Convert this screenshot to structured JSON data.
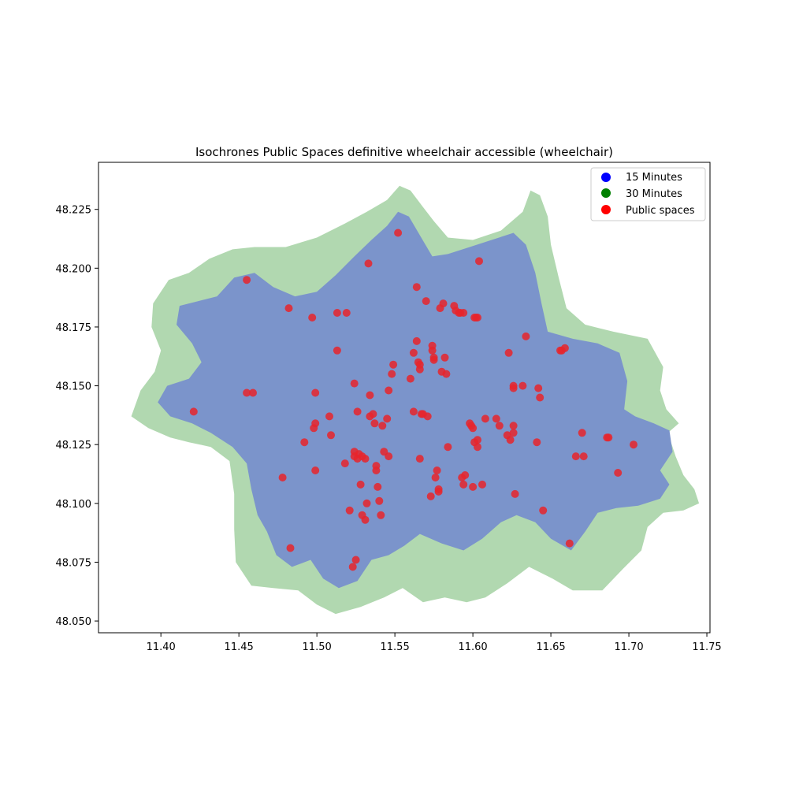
{
  "chart_data": {
    "type": "scatter",
    "title": "Isochrones Public Spaces definitive wheelchair accessible (wheelchair)",
    "xlabel": "",
    "ylabel": "",
    "xlim": [
      11.36,
      11.752
    ],
    "ylim": [
      48.045,
      48.245
    ],
    "xticks": [
      "11.40",
      "11.45",
      "11.50",
      "11.55",
      "11.60",
      "11.65",
      "11.70",
      "11.75"
    ],
    "yticks": [
      "48.050",
      "48.075",
      "48.100",
      "48.125",
      "48.150",
      "48.175",
      "48.200",
      "48.225"
    ],
    "legend_position": "top-right",
    "legend": [
      {
        "label": "15 Minutes",
        "color": "#0000ff"
      },
      {
        "label": "30 Minutes",
        "color": "#008000"
      },
      {
        "label": "Public spaces",
        "color": "#ff0000"
      }
    ],
    "isochrone_colors": {
      "fifteen_minutes": "#7b94cb",
      "thirty_minutes": "#b1d8b0",
      "public_spaces": "#e8242c"
    },
    "isochrone_30_outline": [
      [
        11.553,
        48.235
      ],
      [
        11.56,
        48.233
      ],
      [
        11.568,
        48.226
      ],
      [
        11.575,
        48.22
      ],
      [
        11.584,
        48.213
      ],
      [
        11.6,
        48.212
      ],
      [
        11.618,
        48.216
      ],
      [
        11.632,
        48.224
      ],
      [
        11.637,
        48.233
      ],
      [
        11.643,
        48.231
      ],
      [
        11.648,
        48.222
      ],
      [
        11.65,
        48.21
      ],
      [
        11.655,
        48.196
      ],
      [
        11.66,
        48.183
      ],
      [
        11.672,
        48.176
      ],
      [
        11.69,
        48.173
      ],
      [
        11.712,
        48.17
      ],
      [
        11.722,
        48.158
      ],
      [
        11.72,
        48.148
      ],
      [
        11.724,
        48.14
      ],
      [
        11.732,
        48.134
      ],
      [
        11.725,
        48.13
      ],
      [
        11.73,
        48.12
      ],
      [
        11.735,
        48.112
      ],
      [
        11.742,
        48.106
      ],
      [
        11.745,
        48.1
      ],
      [
        11.735,
        48.097
      ],
      [
        11.722,
        48.096
      ],
      [
        11.712,
        48.09
      ],
      [
        11.708,
        48.08
      ],
      [
        11.696,
        48.072
      ],
      [
        11.683,
        48.063
      ],
      [
        11.664,
        48.063
      ],
      [
        11.651,
        48.068
      ],
      [
        11.636,
        48.073
      ],
      [
        11.622,
        48.066
      ],
      [
        11.608,
        48.06
      ],
      [
        11.596,
        48.058
      ],
      [
        11.582,
        48.06
      ],
      [
        11.568,
        48.058
      ],
      [
        11.555,
        48.064
      ],
      [
        11.543,
        48.06
      ],
      [
        11.528,
        48.056
      ],
      [
        11.512,
        48.053
      ],
      [
        11.5,
        48.057
      ],
      [
        11.488,
        48.063
      ],
      [
        11.472,
        48.064
      ],
      [
        11.458,
        48.065
      ],
      [
        11.448,
        48.075
      ],
      [
        11.447,
        48.089
      ],
      [
        11.447,
        48.104
      ],
      [
        11.444,
        48.118
      ],
      [
        11.432,
        48.124
      ],
      [
        11.418,
        48.126
      ],
      [
        11.406,
        48.128
      ],
      [
        11.392,
        48.132
      ],
      [
        11.381,
        48.137
      ],
      [
        11.387,
        48.148
      ],
      [
        11.396,
        48.156
      ],
      [
        11.4,
        48.165
      ],
      [
        11.394,
        48.175
      ],
      [
        11.395,
        48.185
      ],
      [
        11.405,
        48.195
      ],
      [
        11.418,
        48.198
      ],
      [
        11.431,
        48.204
      ],
      [
        11.446,
        48.208
      ],
      [
        11.46,
        48.209
      ],
      [
        11.48,
        48.209
      ],
      [
        11.5,
        48.213
      ],
      [
        11.518,
        48.219
      ],
      [
        11.532,
        48.224
      ],
      [
        11.545,
        48.229
      ]
    ],
    "isochrone_15_outline": [
      [
        11.552,
        48.224
      ],
      [
        11.559,
        48.222
      ],
      [
        11.566,
        48.214
      ],
      [
        11.574,
        48.205
      ],
      [
        11.584,
        48.206
      ],
      [
        11.598,
        48.209
      ],
      [
        11.612,
        48.212
      ],
      [
        11.626,
        48.215
      ],
      [
        11.634,
        48.21
      ],
      [
        11.64,
        48.198
      ],
      [
        11.644,
        48.185
      ],
      [
        11.648,
        48.173
      ],
      [
        11.664,
        48.17
      ],
      [
        11.68,
        48.168
      ],
      [
        11.694,
        48.164
      ],
      [
        11.699,
        48.152
      ],
      [
        11.697,
        48.14
      ],
      [
        11.704,
        48.137
      ],
      [
        11.716,
        48.134
      ],
      [
        11.726,
        48.131
      ],
      [
        11.728,
        48.122
      ],
      [
        11.72,
        48.114
      ],
      [
        11.726,
        48.108
      ],
      [
        11.72,
        48.102
      ],
      [
        11.706,
        48.099
      ],
      [
        11.692,
        48.098
      ],
      [
        11.68,
        48.096
      ],
      [
        11.672,
        48.088
      ],
      [
        11.663,
        48.08
      ],
      [
        11.65,
        48.085
      ],
      [
        11.64,
        48.092
      ],
      [
        11.628,
        48.095
      ],
      [
        11.618,
        48.092
      ],
      [
        11.606,
        48.085
      ],
      [
        11.594,
        48.08
      ],
      [
        11.58,
        48.083
      ],
      [
        11.566,
        48.087
      ],
      [
        11.556,
        48.082
      ],
      [
        11.546,
        48.078
      ],
      [
        11.535,
        48.076
      ],
      [
        11.526,
        48.067
      ],
      [
        11.514,
        48.064
      ],
      [
        11.504,
        48.068
      ],
      [
        11.496,
        48.076
      ],
      [
        11.484,
        48.073
      ],
      [
        11.474,
        48.078
      ],
      [
        11.468,
        48.088
      ],
      [
        11.462,
        48.095
      ],
      [
        11.458,
        48.106
      ],
      [
        11.455,
        48.117
      ],
      [
        11.446,
        48.124
      ],
      [
        11.432,
        48.13
      ],
      [
        11.42,
        48.134
      ],
      [
        11.406,
        48.137
      ],
      [
        11.398,
        48.143
      ],
      [
        11.404,
        48.15
      ],
      [
        11.418,
        48.153
      ],
      [
        11.426,
        48.16
      ],
      [
        11.42,
        48.168
      ],
      [
        11.41,
        48.176
      ],
      [
        11.412,
        48.184
      ],
      [
        11.424,
        48.186
      ],
      [
        11.436,
        48.188
      ],
      [
        11.447,
        48.196
      ],
      [
        11.46,
        48.198
      ],
      [
        11.472,
        48.192
      ],
      [
        11.486,
        48.188
      ],
      [
        11.5,
        48.19
      ],
      [
        11.512,
        48.197
      ],
      [
        11.524,
        48.205
      ],
      [
        11.535,
        48.212
      ],
      [
        11.545,
        48.218
      ]
    ],
    "public_spaces": [
      [
        11.421,
        48.139
      ],
      [
        11.455,
        48.195
      ],
      [
        11.455,
        48.147
      ],
      [
        11.459,
        48.147
      ],
      [
        11.478,
        48.111
      ],
      [
        11.483,
        48.081
      ],
      [
        11.482,
        48.183
      ],
      [
        11.492,
        48.126
      ],
      [
        11.497,
        48.179
      ],
      [
        11.498,
        48.132
      ],
      [
        11.499,
        48.134
      ],
      [
        11.499,
        48.147
      ],
      [
        11.499,
        48.114
      ],
      [
        11.508,
        48.137
      ],
      [
        11.509,
        48.129
      ],
      [
        11.513,
        48.181
      ],
      [
        11.513,
        48.165
      ],
      [
        11.518,
        48.117
      ],
      [
        11.519,
        48.181
      ],
      [
        11.521,
        48.097
      ],
      [
        11.523,
        48.073
      ],
      [
        11.524,
        48.122
      ],
      [
        11.524,
        48.12
      ],
      [
        11.524,
        48.151
      ],
      [
        11.525,
        48.076
      ],
      [
        11.526,
        48.139
      ],
      [
        11.526,
        48.119
      ],
      [
        11.527,
        48.121
      ],
      [
        11.528,
        48.108
      ],
      [
        11.529,
        48.12
      ],
      [
        11.529,
        48.095
      ],
      [
        11.531,
        48.119
      ],
      [
        11.531,
        48.093
      ],
      [
        11.532,
        48.1
      ],
      [
        11.533,
        48.202
      ],
      [
        11.534,
        48.137
      ],
      [
        11.534,
        48.146
      ],
      [
        11.536,
        48.138
      ],
      [
        11.537,
        48.134
      ],
      [
        11.538,
        48.116
      ],
      [
        11.538,
        48.114
      ],
      [
        11.539,
        48.107
      ],
      [
        11.54,
        48.101
      ],
      [
        11.541,
        48.095
      ],
      [
        11.542,
        48.133
      ],
      [
        11.543,
        48.122
      ],
      [
        11.545,
        48.136
      ],
      [
        11.546,
        48.12
      ],
      [
        11.546,
        48.148
      ],
      [
        11.548,
        48.155
      ],
      [
        11.549,
        48.159
      ],
      [
        11.552,
        48.215
      ],
      [
        11.56,
        48.153
      ],
      [
        11.562,
        48.139
      ],
      [
        11.562,
        48.164
      ],
      [
        11.564,
        48.192
      ],
      [
        11.564,
        48.169
      ],
      [
        11.565,
        48.16
      ],
      [
        11.566,
        48.157
      ],
      [
        11.566,
        48.119
      ],
      [
        11.566,
        48.159
      ],
      [
        11.567,
        48.138
      ],
      [
        11.568,
        48.138
      ],
      [
        11.57,
        48.186
      ],
      [
        11.571,
        48.137
      ],
      [
        11.573,
        48.103
      ],
      [
        11.574,
        48.167
      ],
      [
        11.574,
        48.165
      ],
      [
        11.575,
        48.162
      ],
      [
        11.575,
        48.161
      ],
      [
        11.576,
        48.111
      ],
      [
        11.577,
        48.114
      ],
      [
        11.578,
        48.105
      ],
      [
        11.578,
        48.106
      ],
      [
        11.579,
        48.183
      ],
      [
        11.58,
        48.156
      ],
      [
        11.581,
        48.185
      ],
      [
        11.582,
        48.162
      ],
      [
        11.583,
        48.155
      ],
      [
        11.584,
        48.124
      ],
      [
        11.588,
        48.184
      ],
      [
        11.589,
        48.182
      ],
      [
        11.591,
        48.181
      ],
      [
        11.592,
        48.181
      ],
      [
        11.593,
        48.111
      ],
      [
        11.594,
        48.181
      ],
      [
        11.594,
        48.108
      ],
      [
        11.595,
        48.112
      ],
      [
        11.598,
        48.134
      ],
      [
        11.599,
        48.133
      ],
      [
        11.6,
        48.132
      ],
      [
        11.6,
        48.107
      ],
      [
        11.601,
        48.179
      ],
      [
        11.601,
        48.126
      ],
      [
        11.602,
        48.179
      ],
      [
        11.603,
        48.179
      ],
      [
        11.603,
        48.127
      ],
      [
        11.603,
        48.124
      ],
      [
        11.604,
        48.203
      ],
      [
        11.606,
        48.108
      ],
      [
        11.608,
        48.136
      ],
      [
        11.615,
        48.136
      ],
      [
        11.617,
        48.133
      ],
      [
        11.622,
        48.129
      ],
      [
        11.623,
        48.164
      ],
      [
        11.624,
        48.127
      ],
      [
        11.626,
        48.15
      ],
      [
        11.626,
        48.13
      ],
      [
        11.626,
        48.133
      ],
      [
        11.626,
        48.149
      ],
      [
        11.627,
        48.104
      ],
      [
        11.632,
        48.15
      ],
      [
        11.634,
        48.171
      ],
      [
        11.641,
        48.126
      ],
      [
        11.642,
        48.149
      ],
      [
        11.643,
        48.145
      ],
      [
        11.645,
        48.097
      ],
      [
        11.656,
        48.165
      ],
      [
        11.657,
        48.165
      ],
      [
        11.659,
        48.166
      ],
      [
        11.662,
        48.083
      ],
      [
        11.666,
        48.12
      ],
      [
        11.67,
        48.13
      ],
      [
        11.671,
        48.12
      ],
      [
        11.686,
        48.128
      ],
      [
        11.687,
        48.128
      ],
      [
        11.693,
        48.113
      ],
      [
        11.703,
        48.125
      ]
    ]
  }
}
